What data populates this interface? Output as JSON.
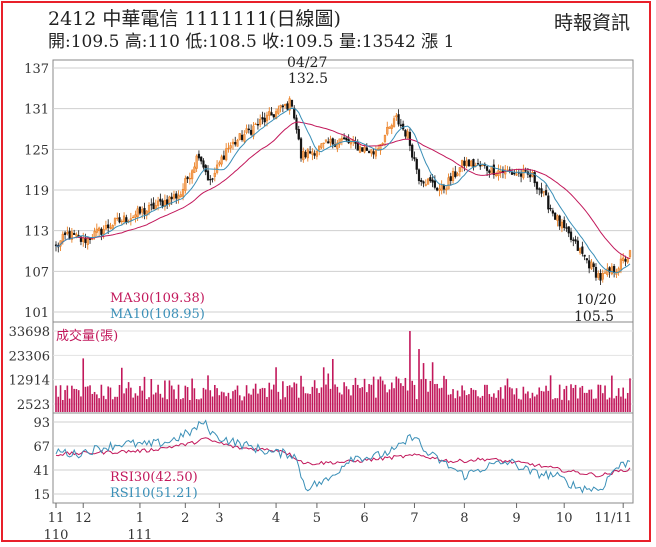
{
  "header": {
    "title": "2412  中華電信 1111111(日線圖)",
    "summary": "開:109.5 高:110 低:108.5 收:109.5 量:13542 漲 1",
    "source": "時報資訊"
  },
  "chart_data": [
    {
      "type": "candlestick",
      "panel": "price",
      "yticks": [
        "137",
        "131",
        "125",
        "119",
        "113",
        "107",
        "101"
      ],
      "ylim": [
        101,
        137
      ],
      "legend": [
        {
          "name": "MA30",
          "label": "MA30(109.38)",
          "color": "#c2185b"
        },
        {
          "name": "MA10",
          "label": "MA10(108.95)",
          "color": "#3a8fb7"
        }
      ],
      "annotations": [
        {
          "date": "04/27",
          "value": "132.5"
        },
        {
          "date": "10/20",
          "value": "105.5"
        }
      ],
      "close_anchors": [
        [
          0,
          110.5
        ],
        [
          5,
          112.5
        ],
        [
          12,
          111.5
        ],
        [
          25,
          114
        ],
        [
          40,
          116
        ],
        [
          55,
          118.5
        ],
        [
          63,
          124.5
        ],
        [
          68,
          120
        ],
        [
          75,
          125
        ],
        [
          88,
          128.5
        ],
        [
          104,
          132
        ],
        [
          108,
          124
        ],
        [
          125,
          126.5
        ],
        [
          140,
          124.5
        ],
        [
          150,
          129.5
        ],
        [
          155,
          127
        ],
        [
          160,
          121
        ],
        [
          170,
          119
        ],
        [
          180,
          123
        ],
        [
          193,
          122
        ],
        [
          210,
          121
        ],
        [
          222,
          114
        ],
        [
          233,
          109
        ],
        [
          240,
          106
        ],
        [
          247,
          107.5
        ],
        [
          253,
          109.5
        ]
      ]
    },
    {
      "type": "bar",
      "panel": "volume",
      "label": "成交量(張)",
      "yticks": [
        "33698",
        "23306",
        "12914",
        "2523"
      ],
      "ylim": [
        2523,
        33698
      ],
      "peaks": [
        {
          "day": 12,
          "value": 22000
        },
        {
          "day": 156,
          "value": 33698
        },
        {
          "day": 160,
          "value": 26000
        },
        {
          "day": 162,
          "value": 20000
        }
      ]
    },
    {
      "type": "line",
      "panel": "rsi",
      "yticks": [
        "93",
        "67",
        "41",
        "15"
      ],
      "ylim": [
        15,
        93
      ],
      "legend": [
        {
          "name": "RSI30",
          "label": "RSI30(42.50)",
          "color": "#c2185b"
        },
        {
          "name": "RSI10",
          "label": "RSI10(51.21)",
          "color": "#3a8fb7"
        }
      ],
      "rsi10_anchors": [
        [
          0,
          62
        ],
        [
          8,
          58
        ],
        [
          20,
          65
        ],
        [
          30,
          70
        ],
        [
          40,
          68
        ],
        [
          50,
          72
        ],
        [
          60,
          83
        ],
        [
          65,
          93
        ],
        [
          70,
          78
        ],
        [
          80,
          70
        ],
        [
          95,
          60
        ],
        [
          105,
          58
        ],
        [
          110,
          22
        ],
        [
          120,
          30
        ],
        [
          130,
          55
        ],
        [
          140,
          55
        ],
        [
          150,
          63
        ],
        [
          158,
          80
        ],
        [
          162,
          62
        ],
        [
          170,
          50
        ],
        [
          180,
          35
        ],
        [
          190,
          45
        ],
        [
          200,
          50
        ],
        [
          210,
          38
        ],
        [
          220,
          35
        ],
        [
          230,
          22
        ],
        [
          240,
          20
        ],
        [
          246,
          42
        ],
        [
          253,
          51
        ]
      ],
      "rsi30_anchors": [
        [
          0,
          58
        ],
        [
          20,
          60
        ],
        [
          40,
          62
        ],
        [
          60,
          70
        ],
        [
          65,
          75
        ],
        [
          80,
          65
        ],
        [
          100,
          62
        ],
        [
          110,
          48
        ],
        [
          130,
          50
        ],
        [
          150,
          55
        ],
        [
          160,
          57
        ],
        [
          175,
          50
        ],
        [
          190,
          53
        ],
        [
          210,
          47
        ],
        [
          225,
          40
        ],
        [
          240,
          35
        ],
        [
          253,
          42.5
        ]
      ]
    }
  ],
  "xaxis": {
    "ticks": [
      {
        "day": 0,
        "label": "11",
        "sub": "110"
      },
      {
        "day": 12,
        "label": "12",
        "sub": ""
      },
      {
        "day": 37,
        "label": "1",
        "sub": "111"
      },
      {
        "day": 57,
        "label": "2",
        "sub": ""
      },
      {
        "day": 72,
        "label": "3",
        "sub": ""
      },
      {
        "day": 97,
        "label": "4",
        "sub": ""
      },
      {
        "day": 115,
        "label": "5",
        "sub": ""
      },
      {
        "day": 136,
        "label": "6",
        "sub": ""
      },
      {
        "day": 158,
        "label": "7",
        "sub": ""
      },
      {
        "day": 180,
        "label": "8",
        "sub": ""
      },
      {
        "day": 203,
        "label": "9",
        "sub": ""
      },
      {
        "day": 224,
        "label": "10",
        "sub": ""
      },
      {
        "day": 250,
        "label": "11/11",
        "sub": ""
      }
    ]
  }
}
